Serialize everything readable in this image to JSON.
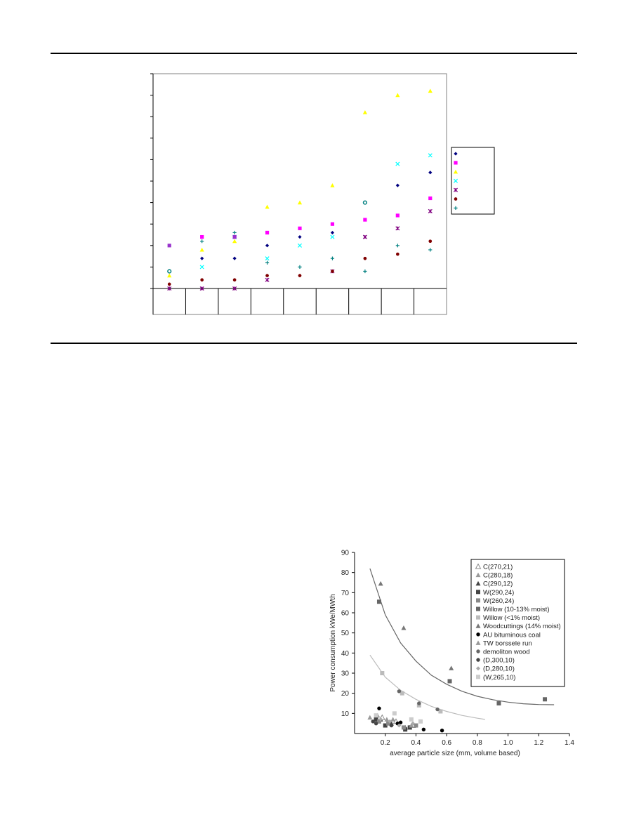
{
  "chart_data": [
    {
      "type": "scatter",
      "title": "",
      "xlabel": "",
      "ylabel": "",
      "grid": false,
      "legend": "right",
      "categories": [
        "",
        "",
        "",
        "",
        "",
        "",
        "",
        "",
        ""
      ],
      "ylim": [
        0,
        10
      ],
      "series": [
        {
          "marker": "diamond",
          "color": "#000080",
          "values": [
            null,
            1.4,
            1.4,
            2.0,
            2.4,
            2.6,
            null,
            4.8,
            5.4
          ]
        },
        {
          "marker": "square",
          "color": "#FF00FF",
          "values": [
            null,
            2.4,
            2.4,
            2.6,
            2.8,
            3.0,
            3.2,
            3.4,
            4.2
          ]
        },
        {
          "marker": "triangle",
          "color": "#FFFF00",
          "values": [
            0.6,
            1.8,
            2.2,
            3.8,
            4.0,
            4.8,
            8.2,
            9.0,
            9.2
          ]
        },
        {
          "marker": "x",
          "color": "#00FFFF",
          "values": [
            null,
            1.0,
            2.4,
            1.4,
            2.0,
            2.4,
            null,
            5.8,
            6.2
          ]
        },
        {
          "marker": "star",
          "color": "#800080",
          "values": [
            0.0,
            0.0,
            0.0,
            0.4,
            null,
            0.8,
            2.4,
            2.8,
            3.6
          ]
        },
        {
          "marker": "circle-dot",
          "color": "#800000",
          "values": [
            0.2,
            0.4,
            0.4,
            0.6,
            0.6,
            0.8,
            1.4,
            1.6,
            2.2
          ]
        },
        {
          "marker": "plus",
          "color": "#008080",
          "values": [
            null,
            2.2,
            2.6,
            1.2,
            1.0,
            1.4,
            0.8,
            2.0,
            1.8
          ]
        },
        {
          "marker": "square",
          "color": "#9933CC",
          "values": [
            2.0,
            null,
            2.4,
            null,
            null,
            null,
            null,
            null,
            null
          ]
        },
        {
          "marker": "circle-open",
          "color": "#008080",
          "values": [
            0.8,
            null,
            null,
            null,
            null,
            null,
            4.0,
            null,
            null
          ]
        }
      ]
    },
    {
      "type": "scatter",
      "title": "",
      "xlabel": "average particle size (mm, volume based)",
      "ylabel": "Power consumption  kWe/MWth",
      "xlim": [
        0,
        1.4
      ],
      "ylim": [
        0,
        90
      ],
      "xticks": [
        "0.2",
        "0.4",
        "0.6",
        "0.8",
        "1.0",
        "1.2",
        "1.4"
      ],
      "yticks": [
        "10",
        "20",
        "30",
        "40",
        "50",
        "60",
        "70",
        "80",
        "90"
      ],
      "legend": "top-right",
      "series": [
        {
          "name": "C(270,21)",
          "marker": "triangle-open",
          "color": "#888888",
          "points": [
            [
              0.18,
              8
            ],
            [
              0.27,
              6
            ],
            [
              0.38,
              4
            ]
          ]
        },
        {
          "name": "C(280,18)",
          "marker": "triangle",
          "color": "#999999",
          "points": [
            [
              0.15,
              9
            ],
            [
              0.25,
              7
            ],
            [
              0.36,
              3
            ]
          ]
        },
        {
          "name": "C(290,12)",
          "marker": "triangle",
          "color": "#444444",
          "points": [
            [
              0.17,
              7
            ],
            [
              0.24,
              5
            ],
            [
              0.33,
              3
            ]
          ]
        },
        {
          "name": "W(290,24)",
          "marker": "square",
          "color": "#444444",
          "points": [
            [
              0.14,
              7
            ],
            [
              0.2,
              4
            ],
            [
              0.33,
              2
            ],
            [
              0.36,
              3
            ]
          ]
        },
        {
          "name": "W(260,24)",
          "marker": "square",
          "color": "#888888",
          "points": [
            [
              0.16,
              6
            ],
            [
              0.22,
              5
            ],
            [
              0.32,
              3
            ],
            [
              0.4,
              4
            ]
          ]
        },
        {
          "name": "Willow (10-13% moist)",
          "marker": "square",
          "color": "#666666",
          "points": [
            [
              0.16,
              65.5
            ],
            [
              0.62,
              26
            ],
            [
              0.94,
              15
            ],
            [
              1.24,
              17
            ]
          ]
        },
        {
          "name": "Willow (<1% moist)",
          "marker": "square",
          "color": "#BBBBBB",
          "points": [
            [
              0.18,
              30
            ],
            [
              0.31,
              20
            ],
            [
              0.42,
              14
            ],
            [
              0.56,
              11
            ]
          ]
        },
        {
          "name": "Woodcuttings (14% moist)",
          "marker": "triangle",
          "color": "#777777",
          "points": [
            [
              0.17,
              74.5
            ],
            [
              0.32,
              52.5
            ],
            [
              0.63,
              32.5
            ]
          ]
        },
        {
          "name": "AU bituminous coal",
          "marker": "circle",
          "color": "#000000",
          "points": [
            [
              0.16,
              12.5
            ],
            [
              0.28,
              5
            ],
            [
              0.3,
              5.5
            ],
            [
              0.45,
              2
            ],
            [
              0.57,
              1.5
            ]
          ]
        },
        {
          "name": "TW borssele run",
          "marker": "triangle",
          "color": "#999999",
          "points": [
            [
              0.1,
              8
            ],
            [
              0.21,
              7
            ],
            [
              0.37,
              4
            ]
          ]
        },
        {
          "name": "demoliton wood",
          "marker": "circle",
          "color": "#666666",
          "points": [
            [
              0.29,
              21
            ],
            [
              0.42,
              15
            ],
            [
              0.54,
              12
            ]
          ]
        },
        {
          "name": "(D,300,10)",
          "marker": "circle",
          "color": "#444444",
          "points": [
            [
              0.12,
              6
            ],
            [
              0.14,
              5
            ],
            [
              0.24,
              4
            ]
          ]
        },
        {
          "name": "(D,280,10)",
          "marker": "diamond",
          "color": "#AAAAAA",
          "points": [
            [
              0.17,
              7
            ],
            [
              0.23,
              6
            ],
            [
              0.29,
              4
            ],
            [
              0.38,
              5
            ]
          ]
        },
        {
          "name": "(W,265,10)",
          "marker": "square",
          "color": "#CCCCCC",
          "points": [
            [
              0.14,
              9
            ],
            [
              0.26,
              10
            ],
            [
              0.37,
              7
            ],
            [
              0.43,
              6
            ]
          ]
        }
      ],
      "trend_lines": [
        {
          "color": "#666666",
          "points": [
            [
              0.1,
              82
            ],
            [
              0.2,
              59
            ],
            [
              0.3,
              45
            ],
            [
              0.4,
              36
            ],
            [
              0.5,
              29
            ],
            [
              0.6,
              24.5
            ],
            [
              0.7,
              21
            ],
            [
              0.8,
              18.5
            ],
            [
              0.9,
              16.8
            ],
            [
              1.0,
              15.6
            ],
            [
              1.1,
              14.8
            ],
            [
              1.2,
              14.4
            ],
            [
              1.3,
              14.3
            ]
          ]
        },
        {
          "color": "#BBBBBB",
          "points": [
            [
              0.1,
              39
            ],
            [
              0.2,
              28
            ],
            [
              0.3,
              21.5
            ],
            [
              0.4,
              17
            ],
            [
              0.5,
              13.5
            ],
            [
              0.6,
              11
            ],
            [
              0.7,
              9
            ],
            [
              0.8,
              7.6
            ],
            [
              0.85,
              7
            ]
          ]
        }
      ]
    }
  ]
}
